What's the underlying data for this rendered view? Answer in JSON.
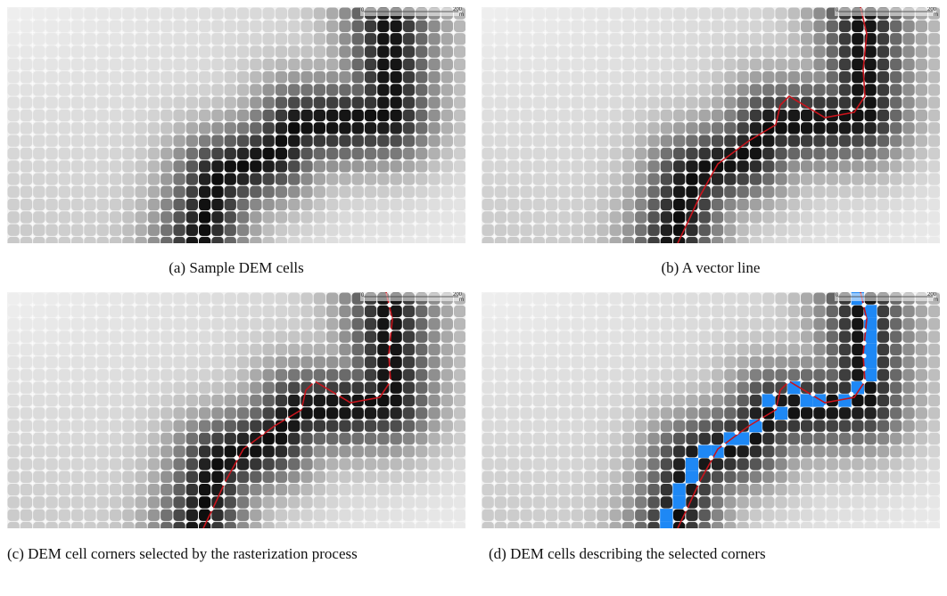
{
  "figures": [
    {
      "caption": "(a) Sample DEM cells",
      "scale": {
        "start": "0",
        "end": "200",
        "unit": "m"
      }
    },
    {
      "caption": "(b) A vector line",
      "scale": {
        "start": "0",
        "end": "200",
        "unit": "m"
      }
    },
    {
      "caption": "(c) DEM cell corners selected by the rasterization process",
      "scale": {
        "start": "0",
        "end": "200",
        "unit": "m"
      }
    },
    {
      "caption": "(d) DEM cells describing the selected corners",
      "scale": {
        "start": "0",
        "end": "200",
        "unit": "m"
      }
    }
  ]
}
